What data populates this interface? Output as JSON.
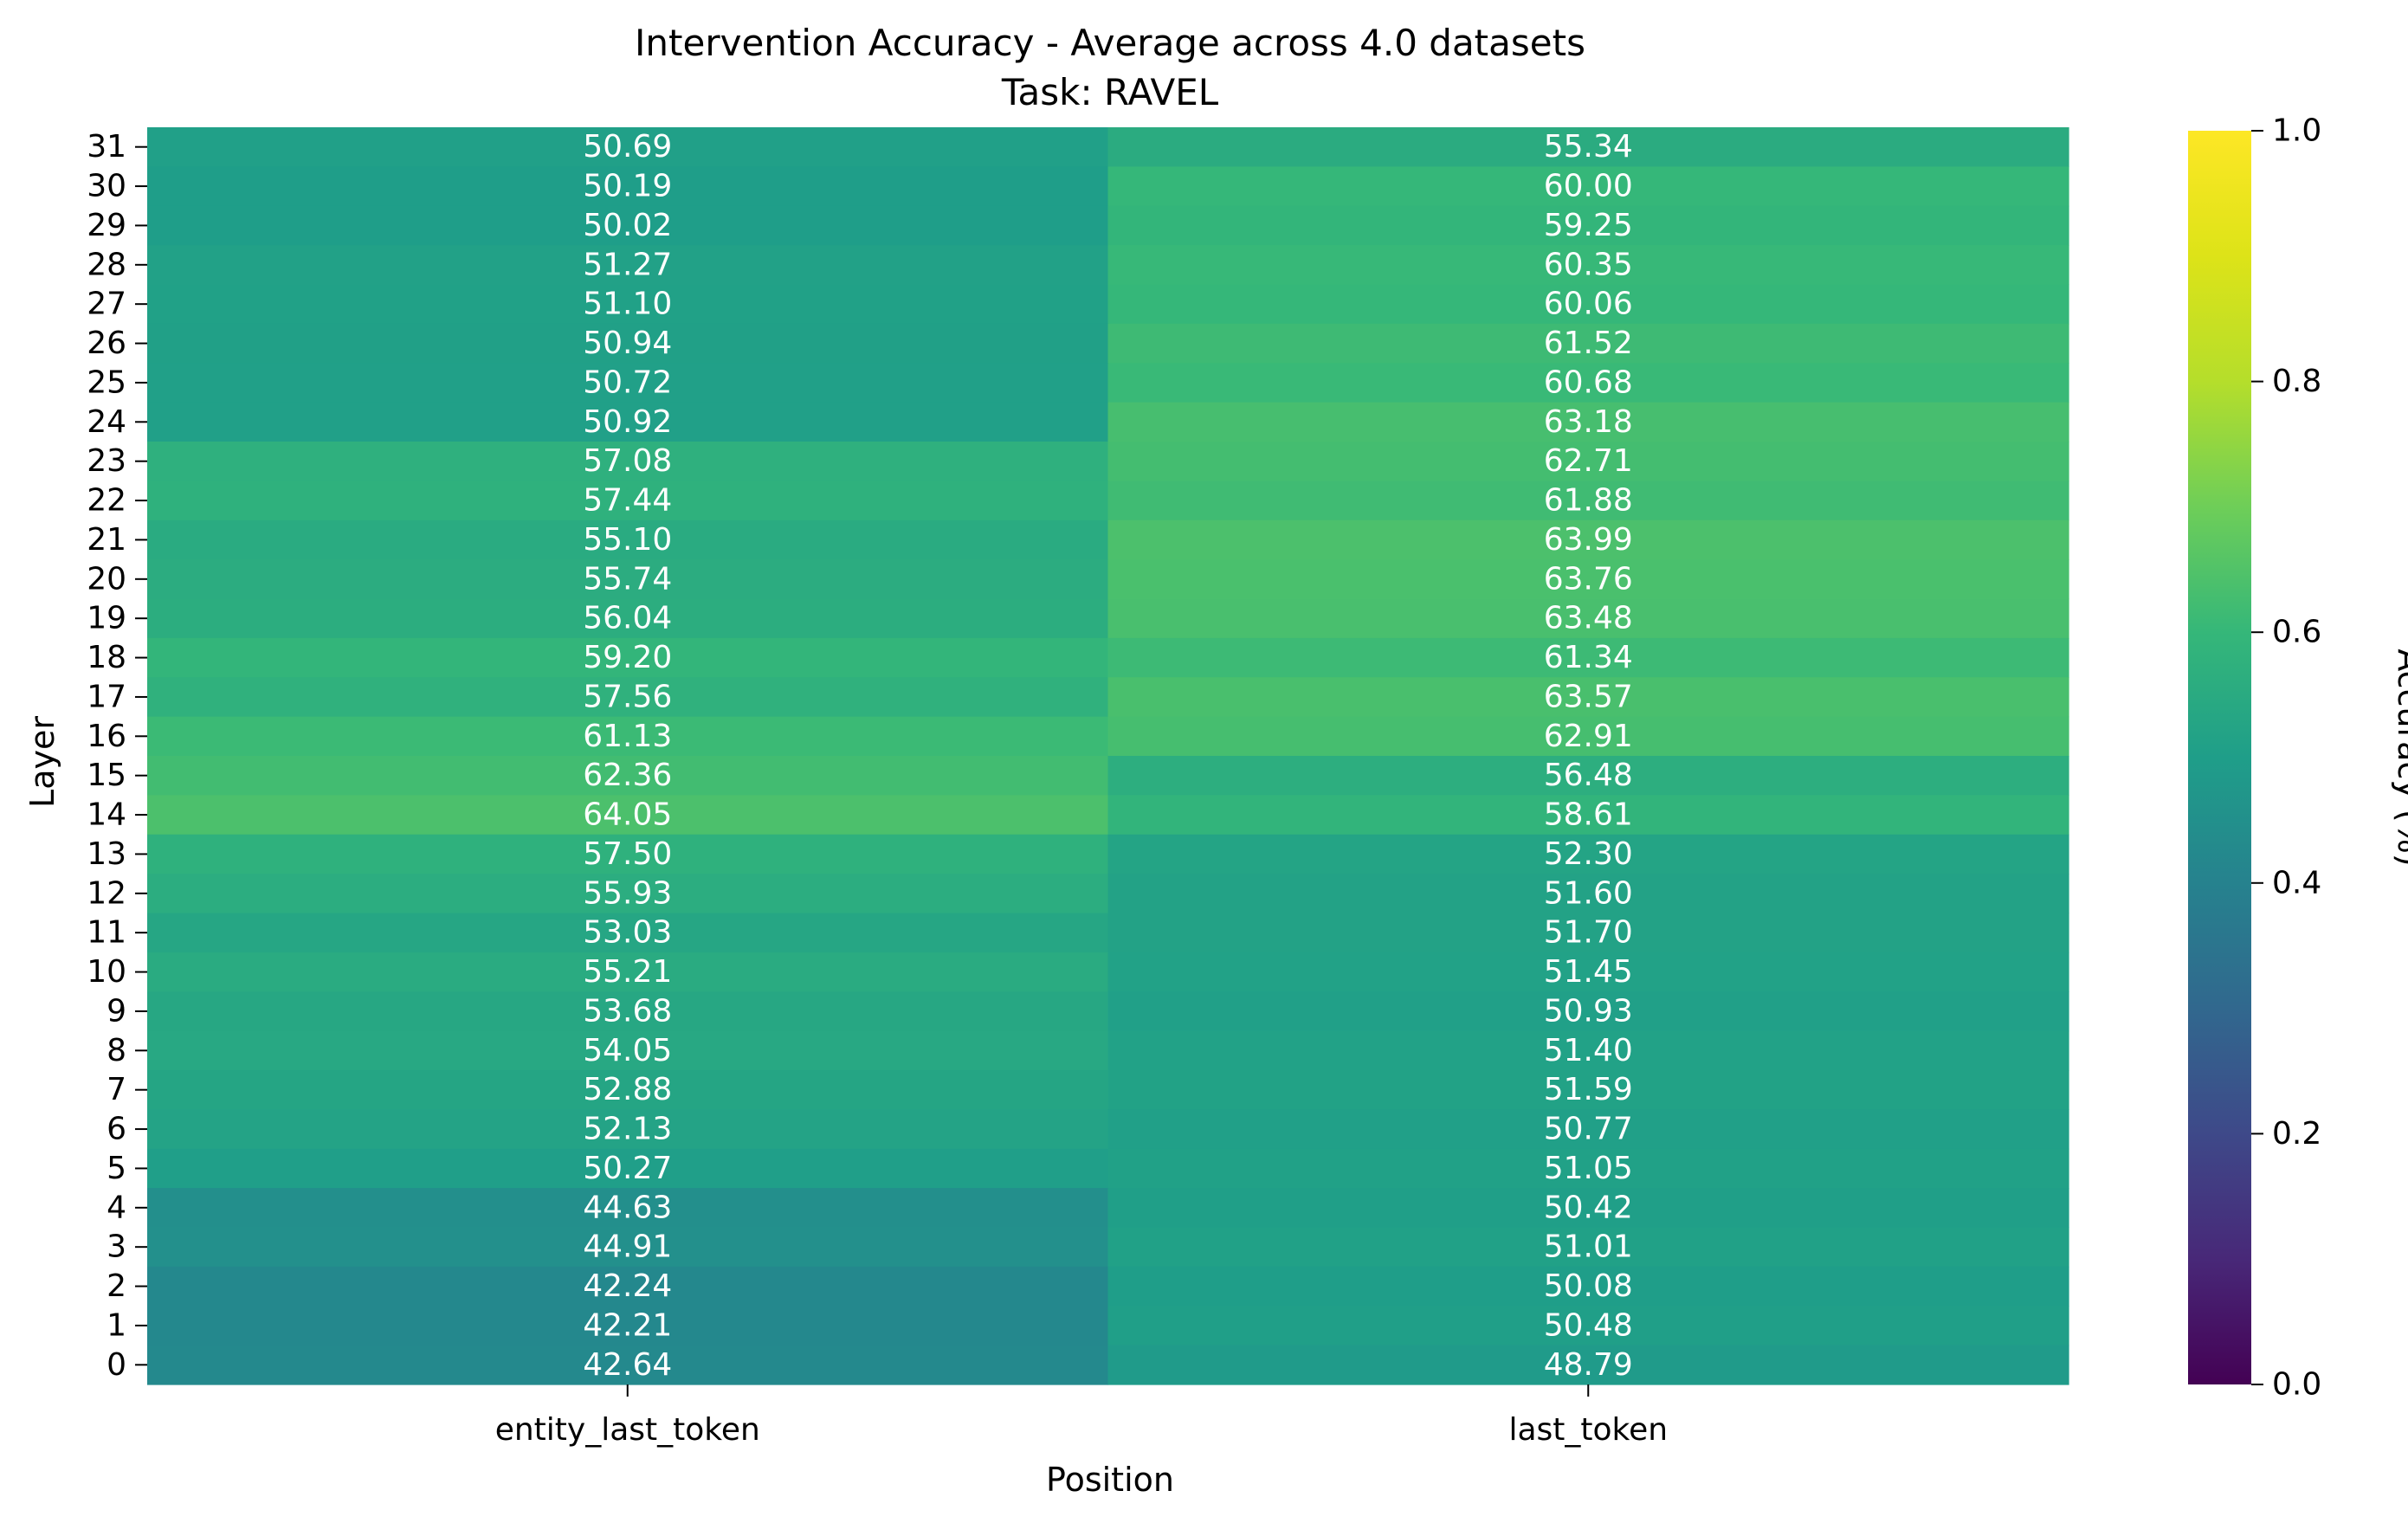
{
  "chart_data": {
    "type": "heatmap",
    "title": "Intervention Accuracy - Average across 4.0 datasets",
    "subtitle": "Task: RAVEL",
    "xlabel": "Position",
    "ylabel": "Layer",
    "colorbar_label": "Accuracy (%)",
    "colormap": "viridis",
    "color_range": [
      0.0,
      1.0
    ],
    "colorbar_ticks": [
      "0.0",
      "0.2",
      "0.4",
      "0.6",
      "0.8",
      "1.0"
    ],
    "columns": [
      "entity_last_token",
      "last_token"
    ],
    "rows": [
      {
        "layer": "31",
        "values": [
          "50.69",
          "55.34"
        ]
      },
      {
        "layer": "30",
        "values": [
          "50.19",
          "60.00"
        ]
      },
      {
        "layer": "29",
        "values": [
          "50.02",
          "59.25"
        ]
      },
      {
        "layer": "28",
        "values": [
          "51.27",
          "60.35"
        ]
      },
      {
        "layer": "27",
        "values": [
          "51.10",
          "60.06"
        ]
      },
      {
        "layer": "26",
        "values": [
          "50.94",
          "61.52"
        ]
      },
      {
        "layer": "25",
        "values": [
          "50.72",
          "60.68"
        ]
      },
      {
        "layer": "24",
        "values": [
          "50.92",
          "63.18"
        ]
      },
      {
        "layer": "23",
        "values": [
          "57.08",
          "62.71"
        ]
      },
      {
        "layer": "22",
        "values": [
          "57.44",
          "61.88"
        ]
      },
      {
        "layer": "21",
        "values": [
          "55.10",
          "63.99"
        ]
      },
      {
        "layer": "20",
        "values": [
          "55.74",
          "63.76"
        ]
      },
      {
        "layer": "19",
        "values": [
          "56.04",
          "63.48"
        ]
      },
      {
        "layer": "18",
        "values": [
          "59.20",
          "61.34"
        ]
      },
      {
        "layer": "17",
        "values": [
          "57.56",
          "63.57"
        ]
      },
      {
        "layer": "16",
        "values": [
          "61.13",
          "62.91"
        ]
      },
      {
        "layer": "15",
        "values": [
          "62.36",
          "56.48"
        ]
      },
      {
        "layer": "14",
        "values": [
          "64.05",
          "58.61"
        ]
      },
      {
        "layer": "13",
        "values": [
          "57.50",
          "52.30"
        ]
      },
      {
        "layer": "12",
        "values": [
          "55.93",
          "51.60"
        ]
      },
      {
        "layer": "11",
        "values": [
          "53.03",
          "51.70"
        ]
      },
      {
        "layer": "10",
        "values": [
          "55.21",
          "51.45"
        ]
      },
      {
        "layer": "9",
        "values": [
          "53.68",
          "50.93"
        ]
      },
      {
        "layer": "8",
        "values": [
          "54.05",
          "51.40"
        ]
      },
      {
        "layer": "7",
        "values": [
          "52.88",
          "51.59"
        ]
      },
      {
        "layer": "6",
        "values": [
          "52.13",
          "50.77"
        ]
      },
      {
        "layer": "5",
        "values": [
          "50.27",
          "51.05"
        ]
      },
      {
        "layer": "4",
        "values": [
          "44.63",
          "50.42"
        ]
      },
      {
        "layer": "3",
        "values": [
          "44.91",
          "51.01"
        ]
      },
      {
        "layer": "2",
        "values": [
          "42.24",
          "50.08"
        ]
      },
      {
        "layer": "1",
        "values": [
          "42.21",
          "50.48"
        ]
      },
      {
        "layer": "0",
        "values": [
          "42.64",
          "48.79"
        ]
      }
    ]
  }
}
